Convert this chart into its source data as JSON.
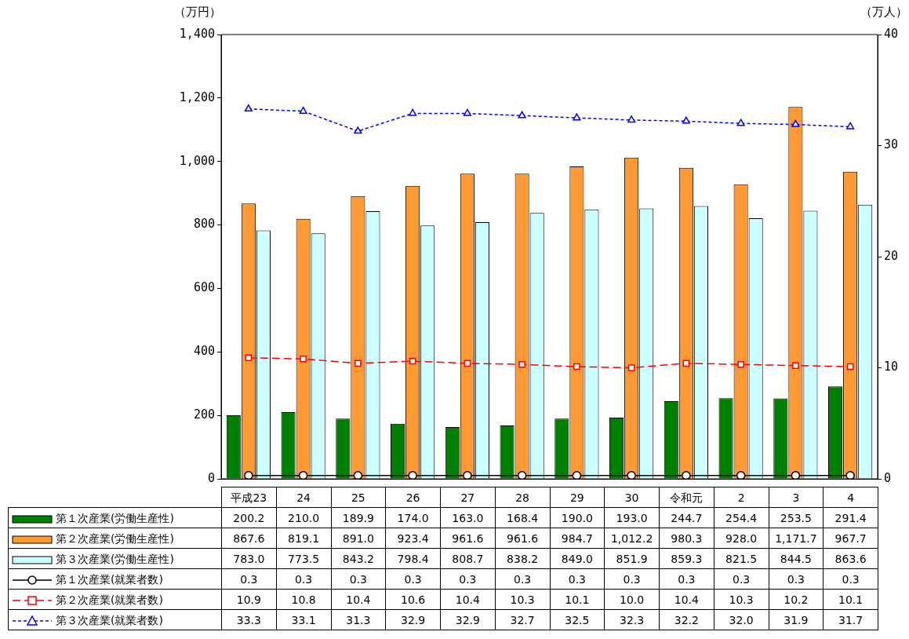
{
  "chart_data": {
    "type": "bar",
    "ylabel": "（万円）",
    "y2label": "（万人）",
    "categories": [
      "平成23",
      "24",
      "25",
      "26",
      "27",
      "28",
      "29",
      "30",
      "令和元",
      "2",
      "3",
      "4"
    ],
    "ylim": [
      0,
      1400
    ],
    "yticks": [
      0,
      200,
      400,
      600,
      800,
      {
        "value": 1000,
        "label": "1,000"
      },
      {
        "value": 1200,
        "label": "1,200"
      },
      {
        "value": 1400,
        "label": "1,400"
      }
    ],
    "y2lim": [
      0,
      40
    ],
    "y2ticks": [
      0,
      10,
      20,
      30,
      40
    ],
    "grid": false,
    "legend": "bottom",
    "series": [
      {
        "name": "第１次産業(労働生産性)",
        "color": "#008000",
        "values": [
          200.2,
          210.0,
          189.9,
          174.0,
          163.0,
          168.4,
          190.0,
          193.0,
          244.7,
          254.4,
          253.5,
          291.4
        ],
        "value_labels": [
          "200.2",
          "210.0",
          "189.9",
          "174.0",
          "163.0",
          "168.4",
          "190.0",
          "193.0",
          "244.7",
          "254.4",
          "253.5",
          "291.4"
        ]
      },
      {
        "name": "第２次産業(労働生産性)",
        "color": "#ff9933",
        "values": [
          867.6,
          819.1,
          891.0,
          923.4,
          961.6,
          961.6,
          984.7,
          1012.2,
          980.3,
          928.0,
          1171.7,
          967.7
        ],
        "value_labels": [
          "867.6",
          "819.1",
          "891.0",
          "923.4",
          "961.6",
          "961.6",
          "984.7",
          "1,012.2",
          "980.3",
          "928.0",
          "1,171.7",
          "967.7"
        ]
      },
      {
        "name": "第３次産業(労働生産性)",
        "color": "#ccffff",
        "values": [
          783.0,
          773.5,
          843.2,
          798.4,
          808.7,
          838.2,
          849.0,
          851.9,
          859.3,
          821.5,
          844.5,
          863.6
        ],
        "value_labels": [
          "783.0",
          "773.5",
          "843.2",
          "798.4",
          "808.7",
          "838.2",
          "849.0",
          "851.9",
          "859.3",
          "821.5",
          "844.5",
          "863.6"
        ]
      },
      {
        "name": "第１次産業(就業者数)",
        "type": "line",
        "axis": "y2",
        "color": "#000000",
        "marker": "circle",
        "line_style": "solid",
        "values": [
          0.3,
          0.3,
          0.3,
          0.3,
          0.3,
          0.3,
          0.3,
          0.3,
          0.3,
          0.3,
          0.3,
          0.3
        ],
        "value_labels": [
          "0.3",
          "0.3",
          "0.3",
          "0.3",
          "0.3",
          "0.3",
          "0.3",
          "0.3",
          "0.3",
          "0.3",
          "0.3",
          "0.3"
        ]
      },
      {
        "name": "第２次産業(就業者数)",
        "type": "line",
        "axis": "y2",
        "color": "#ff0000",
        "marker": "square",
        "line_style": "dashed",
        "values": [
          10.9,
          10.8,
          10.4,
          10.6,
          10.4,
          10.3,
          10.1,
          10.0,
          10.4,
          10.3,
          10.2,
          10.1
        ],
        "value_labels": [
          "10.9",
          "10.8",
          "10.4",
          "10.6",
          "10.4",
          "10.3",
          "10.1",
          "10.0",
          "10.4",
          "10.3",
          "10.2",
          "10.1"
        ]
      },
      {
        "name": "第３次産業(就業者数)",
        "type": "line",
        "axis": "y2",
        "color": "#0000ff",
        "marker": "triangle",
        "line_style": "dotted",
        "values": [
          33.3,
          33.1,
          31.3,
          32.9,
          32.9,
          32.7,
          32.5,
          32.3,
          32.2,
          32.0,
          31.9,
          31.7
        ],
        "value_labels": [
          "33.3",
          "33.1",
          "31.3",
          "32.9",
          "32.9",
          "32.7",
          "32.5",
          "32.3",
          "32.2",
          "32.0",
          "31.9",
          "31.7"
        ]
      }
    ]
  }
}
